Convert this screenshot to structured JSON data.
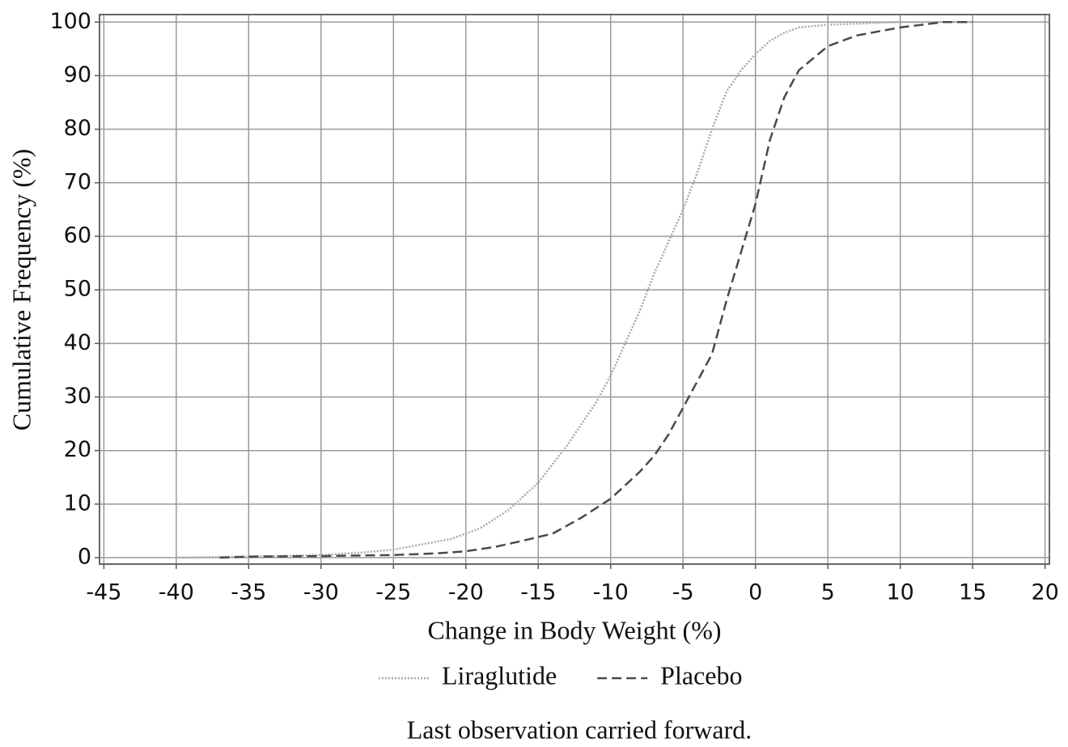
{
  "chart_data": {
    "type": "line",
    "x_label": "Change in Body Weight (%)",
    "y_label": "Cumulative Frequency (%)",
    "caption": "Last observation carried forward.",
    "xlim": [
      -45.3,
      20.3
    ],
    "ylim": [
      -1.2,
      101.4
    ],
    "xticks": [
      -45,
      -40,
      -35,
      -30,
      -25,
      -20,
      -15,
      -10,
      -5,
      0,
      5,
      10,
      15,
      20
    ],
    "yticks": [
      0,
      10,
      20,
      30,
      40,
      50,
      60,
      70,
      80,
      90,
      100
    ],
    "grid": true,
    "series": [
      {
        "name": "Liraglutide",
        "color": "#a8a8a8",
        "dash": "dotted",
        "x": [
          -40,
          -35,
          -30,
          -27,
          -25,
          -23,
          -21,
          -19,
          -17,
          -15,
          -13,
          -11,
          -10,
          -9,
          -8,
          -7,
          -6,
          -5,
          -4,
          -3,
          -2,
          -1,
          0,
          1,
          2,
          3,
          5,
          10,
          15
        ],
        "values": [
          0,
          0.2,
          0.5,
          1,
          1.5,
          2.5,
          3.5,
          5.5,
          9,
          14,
          21,
          29,
          34,
          40,
          46,
          53,
          59,
          65,
          72,
          80,
          87,
          91,
          94,
          96.5,
          98,
          99,
          99.5,
          100,
          100
        ]
      },
      {
        "name": "Placebo",
        "color": "#4a4a4a",
        "dash": "dashed",
        "x": [
          -37,
          -35,
          -30,
          -25,
          -22,
          -20,
          -18,
          -16,
          -14,
          -12,
          -10,
          -8,
          -7,
          -6,
          -5,
          -4,
          -3,
          -2,
          -1,
          0,
          1,
          2,
          3,
          5,
          7,
          10,
          13,
          15
        ],
        "values": [
          0,
          0.2,
          0.3,
          0.5,
          0.8,
          1.2,
          2,
          3.2,
          4.5,
          7.5,
          11,
          16,
          19,
          23,
          28,
          33,
          38,
          48,
          57,
          66,
          78,
          86,
          91,
          95.5,
          97.5,
          99,
          100,
          100
        ]
      }
    ]
  }
}
